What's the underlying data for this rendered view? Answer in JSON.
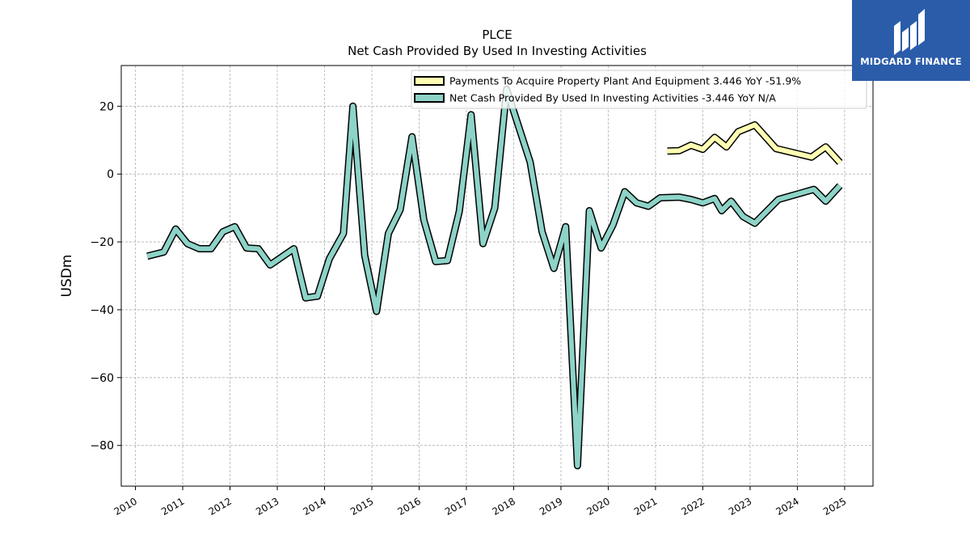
{
  "brand": {
    "name": "MIDGARD FINANCE",
    "icon": "midgard-logo-icon",
    "color": "#2a5caa"
  },
  "chart_data": {
    "type": "line",
    "title": "PLCE",
    "subtitle": "Net Cash Provided By Used In Investing Activities",
    "ylabel": "USDm",
    "xlabel": "",
    "xlim": [
      2009.7,
      2025.6
    ],
    "ylim": [
      -92,
      32
    ],
    "x_ticks": [
      "2010",
      "2011",
      "2012",
      "2013",
      "2014",
      "2015",
      "2016",
      "2017",
      "2018",
      "2019",
      "2020",
      "2021",
      "2022",
      "2023",
      "2024",
      "2025"
    ],
    "y_ticks": [
      20,
      0,
      -20,
      -40,
      -60,
      -80
    ],
    "y_tick_labels": [
      "20",
      "0",
      "−20",
      "−40",
      "−60",
      "−80"
    ],
    "grid": true,
    "legend_position": "top-right",
    "series": [
      {
        "name": "Payments To Acquire Property Plant And Equipment",
        "legend_label": "Payments To Acquire Property Plant And Equipment  3.446 YoY -51.9%",
        "color": "#ffffb3",
        "points": [
          [
            2021.25,
            6.8
          ],
          [
            2021.5,
            6.9
          ],
          [
            2021.75,
            8.5
          ],
          [
            2022.0,
            7.3
          ],
          [
            2022.25,
            10.8
          ],
          [
            2022.5,
            8.0
          ],
          [
            2022.75,
            12.5
          ],
          [
            2023.1,
            14.5
          ],
          [
            2023.55,
            7.5
          ],
          [
            2024.3,
            5.0
          ],
          [
            2024.6,
            8.0
          ],
          [
            2024.9,
            3.4
          ]
        ]
      },
      {
        "name": "Net Cash Provided By Used In Investing Activities",
        "legend_label": "Net Cash Provided By Used In Investing Activities  -3.446 YoY N/A",
        "color": "#8dd3c7",
        "points": [
          [
            2010.25,
            -24.2
          ],
          [
            2010.6,
            -23.0
          ],
          [
            2010.85,
            -16.2
          ],
          [
            2011.1,
            -20.5
          ],
          [
            2011.35,
            -22.0
          ],
          [
            2011.6,
            -22.0
          ],
          [
            2011.85,
            -17.0
          ],
          [
            2012.1,
            -15.5
          ],
          [
            2012.35,
            -21.8
          ],
          [
            2012.6,
            -22.0
          ],
          [
            2012.85,
            -26.8
          ],
          [
            2013.35,
            -22.0
          ],
          [
            2013.6,
            -36.5
          ],
          [
            2013.85,
            -36.0
          ],
          [
            2014.1,
            -25.0
          ],
          [
            2014.4,
            -17.5
          ],
          [
            2014.6,
            20.0
          ],
          [
            2014.85,
            -24.0
          ],
          [
            2015.1,
            -40.5
          ],
          [
            2015.35,
            -17.5
          ],
          [
            2015.6,
            -10.5
          ],
          [
            2015.85,
            11.0
          ],
          [
            2016.1,
            -13.5
          ],
          [
            2016.35,
            -25.8
          ],
          [
            2016.6,
            -25.5
          ],
          [
            2016.85,
            -11.0
          ],
          [
            2017.1,
            17.5
          ],
          [
            2017.35,
            -20.5
          ],
          [
            2017.6,
            -10.0
          ],
          [
            2017.85,
            25.0
          ],
          [
            2018.35,
            3.5
          ],
          [
            2018.6,
            -17.0
          ],
          [
            2018.85,
            -27.8
          ],
          [
            2019.1,
            -15.5
          ],
          [
            2019.35,
            -86.0
          ],
          [
            2019.6,
            -10.8
          ],
          [
            2019.85,
            -21.8
          ],
          [
            2020.1,
            -15.0
          ],
          [
            2020.35,
            -5.2
          ],
          [
            2020.6,
            -8.5
          ],
          [
            2020.85,
            -9.5
          ],
          [
            2021.1,
            -7.0
          ],
          [
            2021.5,
            -6.8
          ],
          [
            2021.75,
            -7.5
          ],
          [
            2022.0,
            -8.5
          ],
          [
            2022.25,
            -7.2
          ],
          [
            2022.4,
            -10.8
          ],
          [
            2022.6,
            -8.0
          ],
          [
            2022.85,
            -12.5
          ],
          [
            2023.1,
            -14.5
          ],
          [
            2023.6,
            -7.5
          ],
          [
            2024.1,
            -5.5
          ],
          [
            2024.35,
            -4.5
          ],
          [
            2024.6,
            -8.0
          ],
          [
            2024.9,
            -3.4
          ]
        ]
      }
    ]
  }
}
